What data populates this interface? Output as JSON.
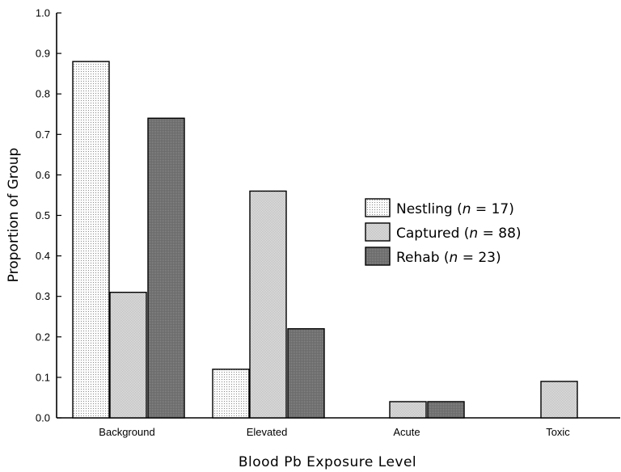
{
  "chart_data": {
    "type": "bar",
    "title": "",
    "xlabel": "Blood Pb Exposure Level",
    "ylabel": "Proportion of Group",
    "ylim": [
      0,
      1.0
    ],
    "yticks": [
      "0.0",
      "0.1",
      "0.2",
      "0.3",
      "0.4",
      "0.5",
      "0.6",
      "0.7",
      "0.8",
      "0.9",
      "1.0"
    ],
    "categories": [
      "Background",
      "Elevated",
      "Acute",
      "Toxic"
    ],
    "series": [
      {
        "name_prefix": "Nestling (",
        "name_n": "n",
        "name_suffix": " = 17)",
        "fill": "nestling",
        "values": [
          0.88,
          0.12,
          0,
          0
        ]
      },
      {
        "name_prefix": "Captured (",
        "name_n": "n",
        "name_suffix": " = 88)",
        "fill": "captured",
        "values": [
          0.31,
          0.56,
          0.04,
          0.09
        ]
      },
      {
        "name_prefix": "Rehab (",
        "name_n": "n",
        "name_suffix": " = 23)",
        "fill": "rehab",
        "values": [
          0.74,
          0.22,
          0.04,
          0
        ]
      }
    ],
    "legend_position": "right-center",
    "grid": false
  }
}
